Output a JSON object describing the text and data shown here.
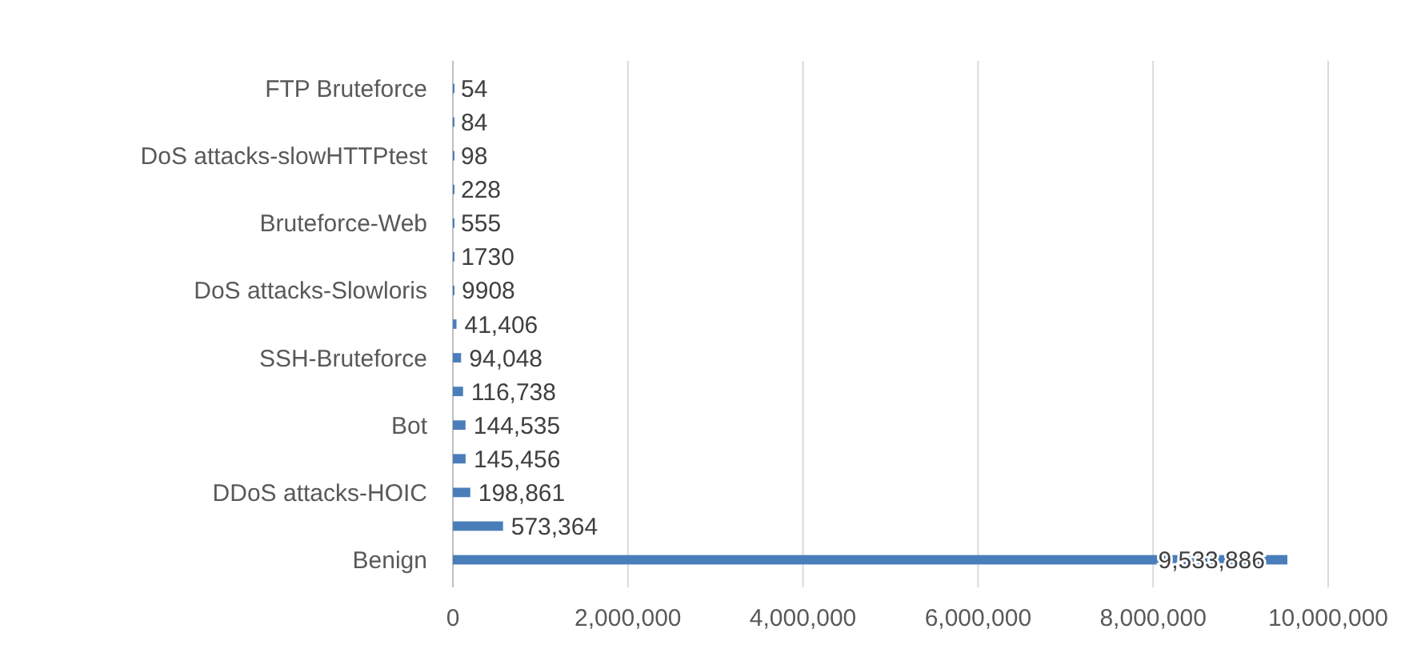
{
  "chart_data": {
    "type": "bar",
    "orientation": "horizontal",
    "categories": [
      "FTP Bruteforce",
      null,
      "DoS attacks-slowHTTPtest",
      null,
      "Bruteforce-Web",
      null,
      "DoS attacks-Slowloris",
      null,
      "SSH-Bruteforce",
      null,
      "Bot",
      null,
      "DDoS attacks-HOIC",
      null,
      "Benign"
    ],
    "values": [
      54,
      84,
      98,
      228,
      555,
      1730,
      9908,
      41406,
      94048,
      116738,
      144535,
      145456,
      198861,
      573364,
      9533886
    ],
    "value_labels": [
      "54",
      "84",
      "98",
      "228",
      "555",
      "1730",
      "9908",
      "41,406",
      "94,048",
      "116,738",
      "144,535",
      "145,456",
      "198,861",
      "573,364",
      "9,533,886"
    ],
    "color": "#4a7ebb",
    "xlim": [
      0,
      10000000
    ],
    "xticks": [
      {
        "value": 0,
        "label": "0"
      },
      {
        "value": 2000000,
        "label": "2,000,000"
      },
      {
        "value": 4000000,
        "label": "4,000,000"
      },
      {
        "value": 6000000,
        "label": "6,000,000"
      },
      {
        "value": 8000000,
        "label": "8,000,000"
      },
      {
        "value": 10000000,
        "label": "10,000,000"
      }
    ],
    "grid": "x"
  }
}
